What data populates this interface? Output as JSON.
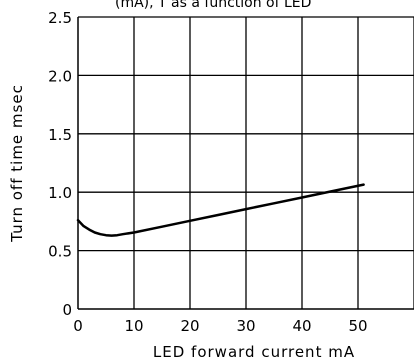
{
  "chart_data": {
    "type": "line",
    "title": "",
    "xlabel": "LED forward current mA",
    "ylabel": "Turn off time msec",
    "xlim": [
      0,
      60
    ],
    "ylim": [
      0,
      2.5
    ],
    "x_ticks": [
      "0",
      "10",
      "20",
      "30",
      "40",
      "50"
    ],
    "y_ticks": [
      "0",
      "0.5",
      "1.0",
      "1.5",
      "2.0",
      "2.5"
    ],
    "grid": true,
    "legend": "none",
    "series": [
      {
        "x": [
          0,
          1,
          2,
          3,
          4,
          5,
          6,
          7,
          8,
          10,
          15,
          20,
          25,
          30,
          35,
          40,
          45,
          51
        ],
        "y": [
          0.76,
          0.71,
          0.68,
          0.655,
          0.64,
          0.632,
          0.628,
          0.632,
          0.64,
          0.655,
          0.705,
          0.755,
          0.805,
          0.855,
          0.905,
          0.955,
          1.005,
          1.065
        ]
      }
    ],
    "colors": {
      "line": "#000000",
      "grid": "#000000",
      "background": "#ffffff"
    },
    "top_caption_fragment": "(mA), T as a function of LED"
  }
}
